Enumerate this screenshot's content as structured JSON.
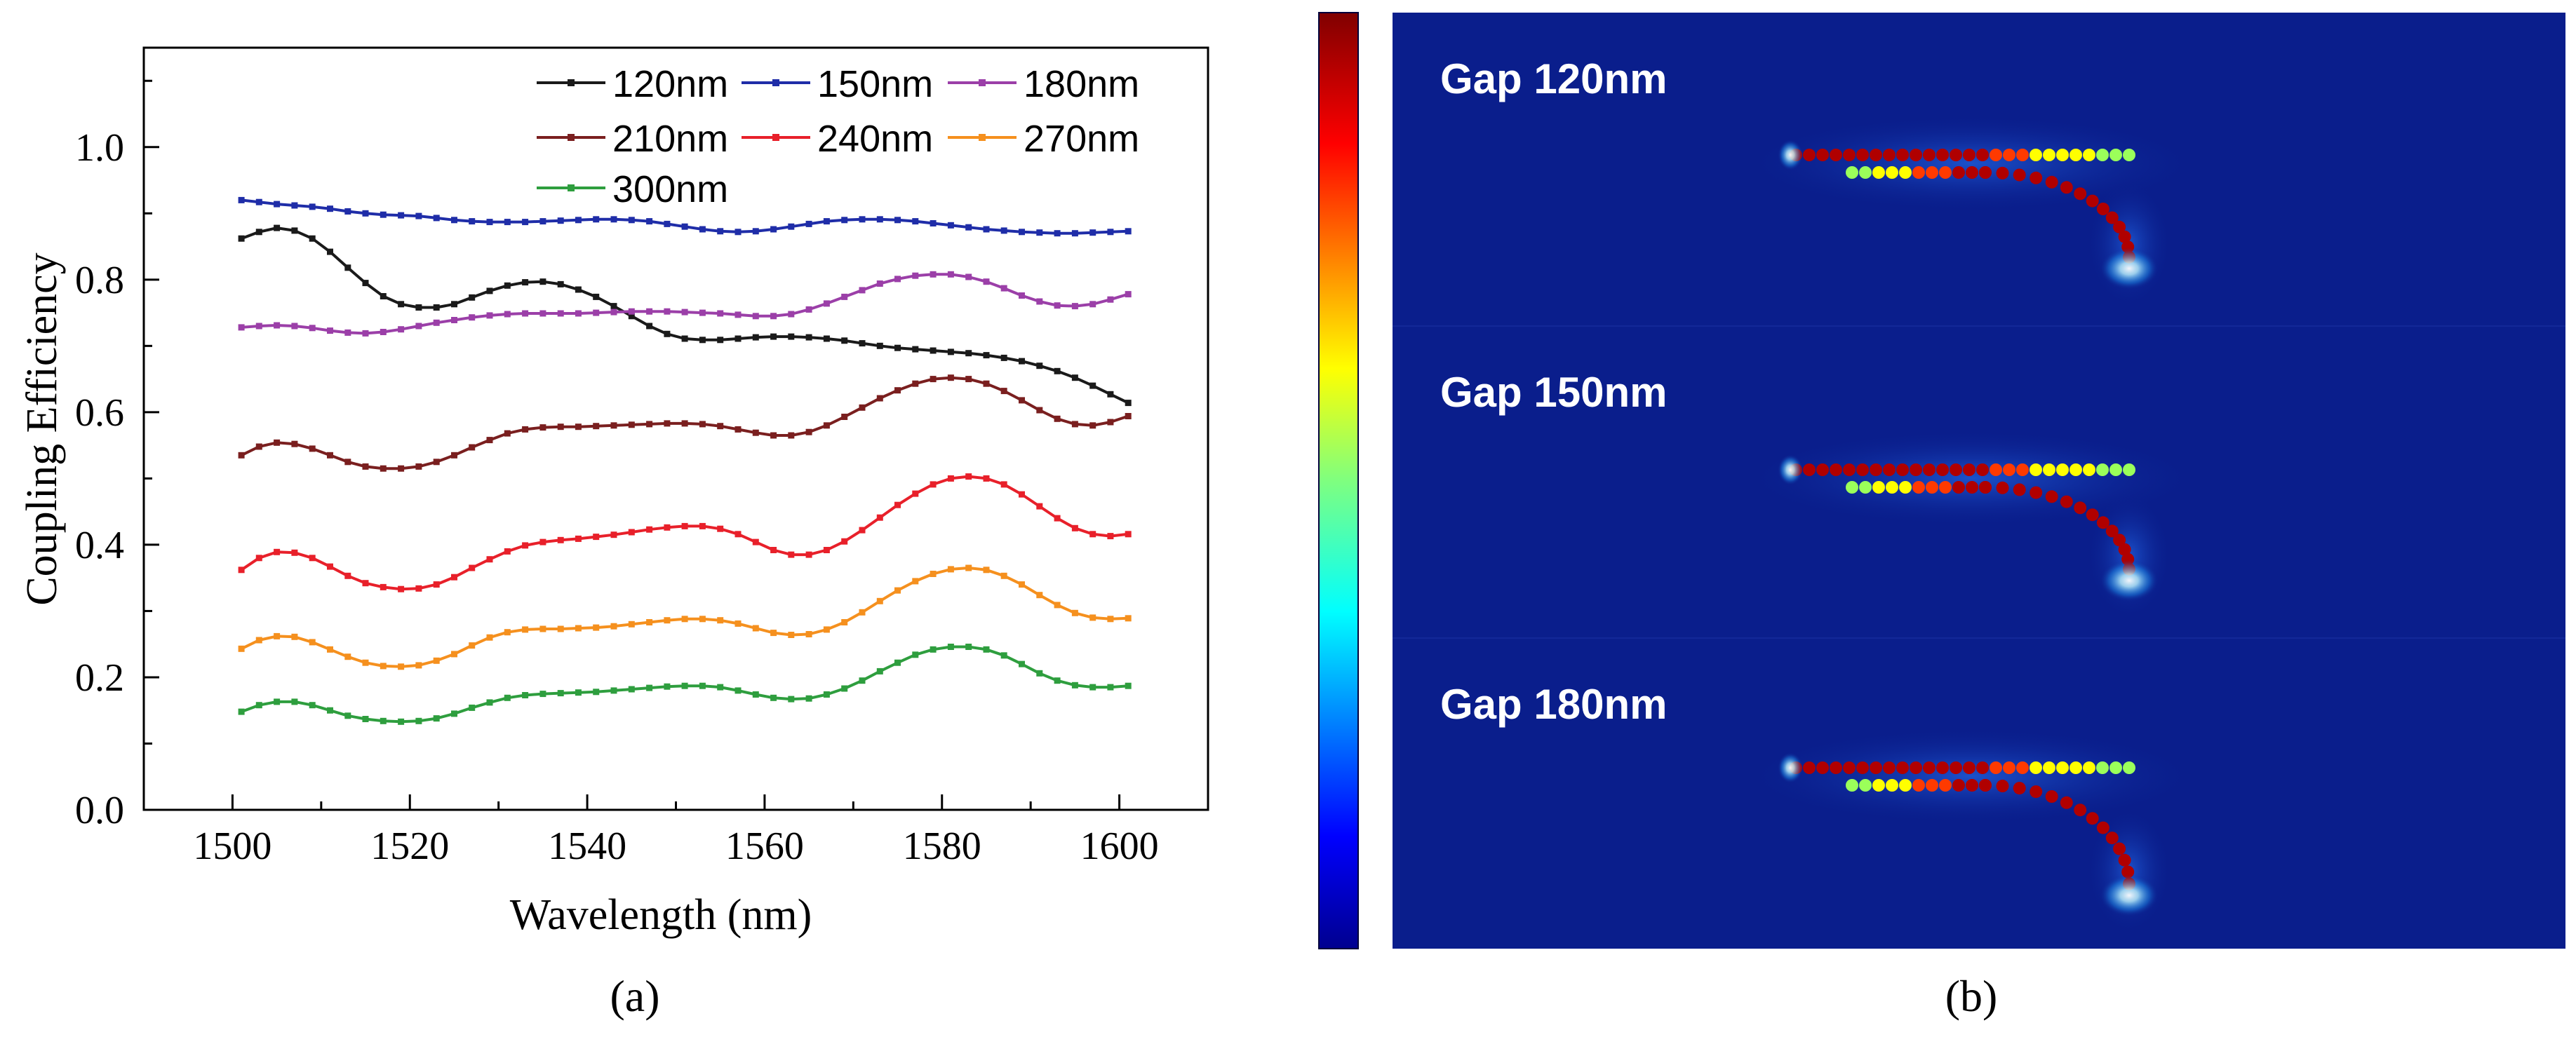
{
  "chart_data": [
    {
      "type": "line",
      "panel_label": "(a)",
      "title": "",
      "xlabel": "Wavelength (nm)",
      "ylabel": "Coupling Efficiency",
      "xlim": [
        1490,
        1610
      ],
      "ylim": [
        0.0,
        1.15
      ],
      "xticks": [
        1500,
        1520,
        1540,
        1560,
        1580,
        1600
      ],
      "yticks": [
        0.0,
        0.2,
        0.4,
        0.6,
        0.8,
        1.0
      ],
      "xtick_labels": [
        "1500",
        "1520",
        "1540",
        "1560",
        "1580",
        "1600"
      ],
      "ytick_labels": [
        "0.0",
        "0.2",
        "0.4",
        "0.6",
        "0.8",
        "1.0"
      ],
      "grid": false,
      "legend_position": "top-right",
      "x": [
        1501,
        1503,
        1505,
        1507,
        1509,
        1511,
        1513,
        1515,
        1517,
        1519,
        1521,
        1523,
        1525,
        1527,
        1529,
        1531,
        1533,
        1535,
        1537,
        1539,
        1541,
        1543,
        1545,
        1547,
        1549,
        1551,
        1553,
        1555,
        1557,
        1559,
        1561,
        1563,
        1565,
        1567,
        1569,
        1571,
        1573,
        1575,
        1577,
        1579,
        1581,
        1583,
        1585,
        1587,
        1589,
        1591,
        1593,
        1595,
        1597,
        1599,
        1601
      ],
      "series": [
        {
          "name": "120nm",
          "color": "#1a1a1a",
          "values": [
            0.862,
            0.872,
            0.878,
            0.874,
            0.862,
            0.842,
            0.818,
            0.795,
            0.775,
            0.763,
            0.758,
            0.758,
            0.763,
            0.773,
            0.783,
            0.791,
            0.796,
            0.797,
            0.793,
            0.785,
            0.774,
            0.76,
            0.745,
            0.73,
            0.718,
            0.711,
            0.709,
            0.709,
            0.711,
            0.713,
            0.714,
            0.714,
            0.713,
            0.711,
            0.708,
            0.704,
            0.7,
            0.697,
            0.695,
            0.693,
            0.691,
            0.689,
            0.686,
            0.682,
            0.677,
            0.67,
            0.662,
            0.652,
            0.64,
            0.627,
            0.614
          ]
        },
        {
          "name": "150nm",
          "color": "#1f2da8",
          "values": [
            0.92,
            0.917,
            0.914,
            0.912,
            0.91,
            0.907,
            0.903,
            0.9,
            0.898,
            0.897,
            0.896,
            0.893,
            0.89,
            0.888,
            0.887,
            0.887,
            0.887,
            0.888,
            0.889,
            0.89,
            0.891,
            0.891,
            0.89,
            0.888,
            0.884,
            0.88,
            0.876,
            0.873,
            0.872,
            0.873,
            0.876,
            0.88,
            0.884,
            0.888,
            0.89,
            0.891,
            0.891,
            0.89,
            0.888,
            0.885,
            0.882,
            0.879,
            0.876,
            0.874,
            0.872,
            0.871,
            0.87,
            0.87,
            0.871,
            0.872,
            0.873
          ]
        },
        {
          "name": "180nm",
          "color": "#9b3fa8",
          "values": [
            0.728,
            0.73,
            0.731,
            0.73,
            0.727,
            0.723,
            0.72,
            0.719,
            0.721,
            0.725,
            0.73,
            0.735,
            0.739,
            0.743,
            0.746,
            0.748,
            0.749,
            0.749,
            0.749,
            0.749,
            0.75,
            0.751,
            0.752,
            0.752,
            0.752,
            0.751,
            0.75,
            0.749,
            0.747,
            0.745,
            0.745,
            0.748,
            0.755,
            0.764,
            0.774,
            0.784,
            0.794,
            0.801,
            0.806,
            0.808,
            0.808,
            0.804,
            0.797,
            0.787,
            0.776,
            0.767,
            0.761,
            0.76,
            0.763,
            0.77,
            0.778
          ]
        },
        {
          "name": "210nm",
          "color": "#7a1f1f",
          "values": [
            0.535,
            0.548,
            0.554,
            0.552,
            0.545,
            0.535,
            0.525,
            0.518,
            0.515,
            0.515,
            0.518,
            0.525,
            0.535,
            0.547,
            0.558,
            0.568,
            0.574,
            0.577,
            0.578,
            0.578,
            0.579,
            0.58,
            0.581,
            0.582,
            0.583,
            0.583,
            0.582,
            0.579,
            0.574,
            0.569,
            0.565,
            0.565,
            0.57,
            0.58,
            0.593,
            0.607,
            0.621,
            0.633,
            0.643,
            0.65,
            0.652,
            0.65,
            0.643,
            0.632,
            0.618,
            0.603,
            0.59,
            0.582,
            0.58,
            0.585,
            0.594
          ]
        },
        {
          "name": "240nm",
          "color": "#e8202a",
          "values": [
            0.362,
            0.38,
            0.389,
            0.388,
            0.38,
            0.367,
            0.353,
            0.342,
            0.336,
            0.333,
            0.334,
            0.34,
            0.351,
            0.365,
            0.378,
            0.39,
            0.399,
            0.404,
            0.407,
            0.409,
            0.412,
            0.415,
            0.419,
            0.423,
            0.426,
            0.428,
            0.428,
            0.424,
            0.416,
            0.404,
            0.392,
            0.385,
            0.385,
            0.392,
            0.405,
            0.422,
            0.441,
            0.46,
            0.477,
            0.491,
            0.5,
            0.503,
            0.5,
            0.491,
            0.476,
            0.458,
            0.44,
            0.425,
            0.416,
            0.413,
            0.416
          ]
        },
        {
          "name": "270nm",
          "color": "#f5901e",
          "values": [
            0.243,
            0.256,
            0.262,
            0.261,
            0.253,
            0.242,
            0.231,
            0.222,
            0.217,
            0.216,
            0.218,
            0.225,
            0.235,
            0.248,
            0.26,
            0.268,
            0.272,
            0.273,
            0.273,
            0.274,
            0.275,
            0.277,
            0.28,
            0.283,
            0.286,
            0.288,
            0.288,
            0.286,
            0.281,
            0.274,
            0.267,
            0.264,
            0.265,
            0.272,
            0.283,
            0.298,
            0.315,
            0.331,
            0.345,
            0.356,
            0.363,
            0.365,
            0.362,
            0.353,
            0.34,
            0.324,
            0.309,
            0.297,
            0.29,
            0.288,
            0.289
          ]
        },
        {
          "name": "300nm",
          "color": "#2e9e3e",
          "values": [
            0.148,
            0.158,
            0.163,
            0.163,
            0.158,
            0.15,
            0.142,
            0.137,
            0.134,
            0.133,
            0.134,
            0.138,
            0.145,
            0.154,
            0.162,
            0.169,
            0.173,
            0.175,
            0.176,
            0.177,
            0.178,
            0.18,
            0.182,
            0.184,
            0.186,
            0.187,
            0.187,
            0.185,
            0.18,
            0.174,
            0.169,
            0.167,
            0.168,
            0.174,
            0.183,
            0.195,
            0.209,
            0.222,
            0.234,
            0.242,
            0.246,
            0.246,
            0.242,
            0.233,
            0.22,
            0.206,
            0.195,
            0.188,
            0.185,
            0.185,
            0.187
          ]
        }
      ]
    },
    {
      "type": "heatmap",
      "panel_label": "(b)",
      "colormap": "jet",
      "panels": [
        {
          "label": "Gap 120nm"
        },
        {
          "label": "Gap 150nm"
        },
        {
          "label": "Gap 180nm"
        }
      ]
    }
  ],
  "colors": {
    "background": "#ffffff",
    "axis": "#000000",
    "field_background": "#0a1e8c"
  }
}
